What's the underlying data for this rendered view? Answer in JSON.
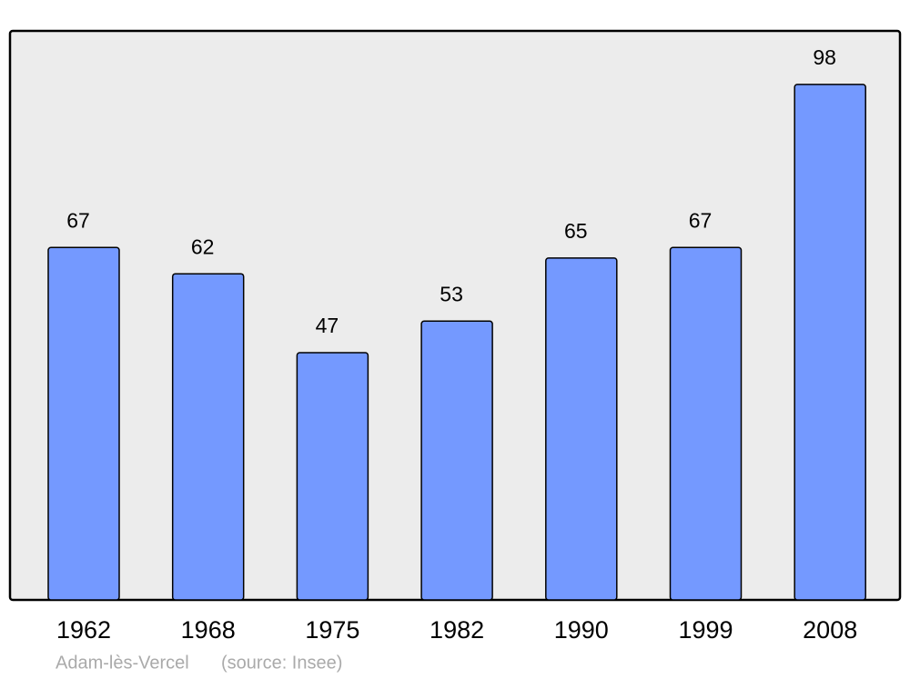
{
  "chart_data": {
    "type": "bar",
    "title": "Adam-lès-Vercel",
    "source": "(source: Insee)",
    "categories": [
      "1962",
      "1968",
      "1975",
      "1982",
      "1990",
      "1999",
      "2008"
    ],
    "values": [
      67,
      62,
      47,
      53,
      65,
      67,
      98
    ],
    "color": "#7499ff",
    "ylim": [
      0,
      108
    ]
  }
}
